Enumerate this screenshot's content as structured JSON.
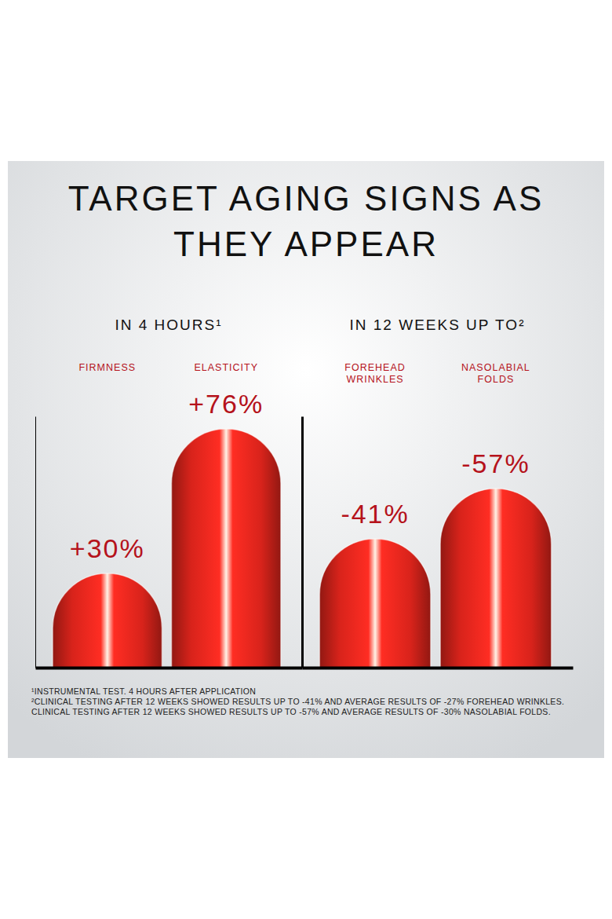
{
  "title": "TARGET AGING SIGNS AS THEY APPEAR",
  "footnotes": [
    "¹INSTRUMENTAL TEST. 4 HOURS AFTER APPLICATION",
    "²CLINICAL TESTING AFTER 12 WEEKS SHOWED RESULTS UP TO -41% AND AVERAGE RESULTS OF -27% FOREHEAD WRINKLES. CLINICAL TESTING AFTER 12 WEEKS SHOWED RESULTS UP TO -57% AND AVERAGE RESULTS OF -30% NASOLABIAL FOLDS."
  ],
  "chart_data": [
    {
      "type": "bar",
      "title": "IN 4 HOURS¹",
      "categories": [
        "FIRMNESS",
        "ELASTICITY"
      ],
      "values": [
        30,
        76
      ],
      "value_labels": [
        "+30%",
        "+76%"
      ],
      "data_labels": true,
      "ylim": [
        0,
        80
      ],
      "tick_labels": false,
      "color": "#d8231b"
    },
    {
      "type": "bar",
      "title": "IN 12 WEEKS UP TO²",
      "categories": [
        "FOREHEAD WRINKLES",
        "NASOLABIAL FOLDS"
      ],
      "values": [
        -41,
        -57
      ],
      "value_labels": [
        "-41%",
        "-57%"
      ],
      "data_labels": true,
      "ylim": [
        0,
        -80
      ],
      "tick_labels": false,
      "color": "#d8231b"
    }
  ]
}
